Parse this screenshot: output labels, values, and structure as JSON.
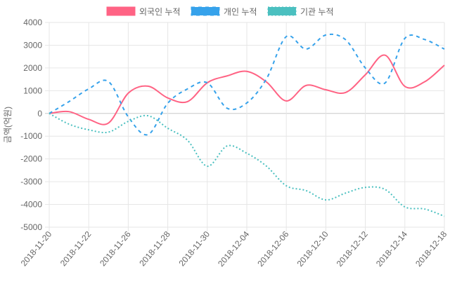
{
  "chart_data": {
    "type": "line",
    "title": "",
    "xlabel": "",
    "ylabel": "금액(억원)",
    "ylim": [
      -5000,
      4000
    ],
    "ytick_step": 1000,
    "grid": true,
    "legend_position": "top",
    "x": [
      "2018-11-20",
      "2018-11-21",
      "2018-11-22",
      "2018-11-23",
      "2018-11-26",
      "2018-11-27",
      "2018-11-28",
      "2018-11-29",
      "2018-11-30",
      "2018-12-03",
      "2018-12-04",
      "2018-12-05",
      "2018-12-06",
      "2018-12-07",
      "2018-12-10",
      "2018-12-11",
      "2018-12-12",
      "2018-12-13",
      "2018-12-14",
      "2018-12-17",
      "2018-12-18"
    ],
    "x_tick_labels": [
      "2018-11-20",
      "2018-11-22",
      "2018-11-26",
      "2018-11-28",
      "2018-11-30",
      "2018-12-04",
      "2018-12-06",
      "2018-12-10",
      "2018-12-12",
      "2018-12-14",
      "2018-12-18"
    ],
    "series": [
      {
        "name": "외국인 누적",
        "color": "#ff6384",
        "dash": "solid",
        "values": [
          0,
          80,
          -260,
          -420,
          890,
          1200,
          680,
          520,
          1350,
          1650,
          1850,
          1380,
          550,
          1230,
          1040,
          920,
          1700,
          2560,
          1190,
          1390,
          2120
        ]
      },
      {
        "name": "개인 누적",
        "color": "#36a2eb",
        "dash": "dashed",
        "values": [
          0,
          520,
          1080,
          1400,
          -150,
          -930,
          450,
          1080,
          1350,
          230,
          460,
          1530,
          3380,
          2830,
          3450,
          3240,
          2000,
          1340,
          3300,
          3250,
          2830
        ]
      },
      {
        "name": "기관 누적",
        "color": "#4bc0c0",
        "dash": "dotted",
        "values": [
          0,
          -470,
          -720,
          -820,
          -350,
          -100,
          -650,
          -1180,
          -2320,
          -1430,
          -1750,
          -2320,
          -3180,
          -3390,
          -3800,
          -3500,
          -3250,
          -3340,
          -4110,
          -4200,
          -4520
        ]
      }
    ]
  }
}
